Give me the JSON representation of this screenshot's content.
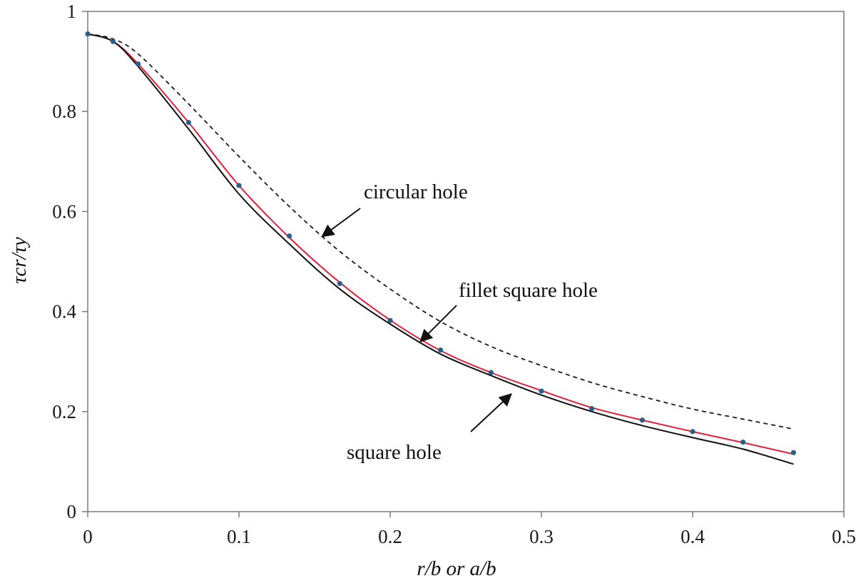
{
  "chart_data": {
    "type": "line",
    "title": "",
    "xlabel": "r/b or a/b",
    "ylabel": "τcr/τy",
    "xlim": [
      0,
      0.5
    ],
    "ylim": [
      0,
      1
    ],
    "x_ticks": [
      "0",
      "0.1",
      "0.2",
      "0.3",
      "0.4",
      "0.5"
    ],
    "y_ticks": [
      "0",
      "0.2",
      "0.4",
      "0.6",
      "0.8",
      "1"
    ],
    "grid": false,
    "legend": "none",
    "series": [
      {
        "name": "circular hole",
        "style": "dashed",
        "color": "#1a1a1a",
        "x": [
          0,
          0.0167,
          0.0333,
          0.0667,
          0.1,
          0.1333,
          0.1667,
          0.2,
          0.2333,
          0.2667,
          0.3,
          0.3333,
          0.3667,
          0.4,
          0.4333,
          0.4667
        ],
        "y": [
          0.955,
          0.945,
          0.915,
          0.815,
          0.71,
          0.61,
          0.52,
          0.445,
          0.38,
          0.33,
          0.292,
          0.258,
          0.23,
          0.205,
          0.185,
          0.165
        ]
      },
      {
        "name": "fillet square hole",
        "style": "solid",
        "color": "#e0203a",
        "x": [
          0,
          0.0167,
          0.0333,
          0.0667,
          0.1,
          0.1333,
          0.1667,
          0.2,
          0.2333,
          0.2667,
          0.3,
          0.3333,
          0.3667,
          0.4,
          0.4333,
          0.4667
        ],
        "y": [
          0.955,
          0.94,
          0.895,
          0.778,
          0.652,
          0.548,
          0.458,
          0.383,
          0.322,
          0.278,
          0.242,
          0.208,
          0.183,
          0.16,
          0.138,
          0.115
        ]
      },
      {
        "name": "square hole",
        "style": "solid",
        "color": "#111111",
        "x": [
          0,
          0.0167,
          0.0333,
          0.0667,
          0.1,
          0.1333,
          0.1667,
          0.2,
          0.2333,
          0.2667,
          0.3,
          0.3333,
          0.3667,
          0.4,
          0.4333,
          0.4667
        ],
        "y": [
          0.955,
          0.94,
          0.89,
          0.765,
          0.635,
          0.535,
          0.445,
          0.375,
          0.315,
          0.272,
          0.233,
          0.2,
          0.172,
          0.148,
          0.125,
          0.095
        ]
      },
      {
        "name": "",
        "style": "markers",
        "color": "#2a5f8a",
        "x": [
          0,
          0.0167,
          0.0333,
          0.0667,
          0.1,
          0.1333,
          0.1667,
          0.2,
          0.2333,
          0.2667,
          0.3,
          0.3333,
          0.3667,
          0.4,
          0.4333,
          0.4667
        ],
        "y": [
          0.955,
          0.94,
          0.895,
          0.778,
          0.652,
          0.551,
          0.456,
          0.382,
          0.323,
          0.278,
          0.241,
          0.206,
          0.183,
          0.16,
          0.139,
          0.118
        ]
      }
    ],
    "annotations": [
      {
        "text": "circular hole",
        "points_to_x": 0.155,
        "points_to_y": 0.55
      },
      {
        "text": "fillet square hole",
        "points_to_x": 0.22,
        "points_to_y": 0.34
      },
      {
        "text": "square hole",
        "points_to_x": 0.28,
        "points_to_y": 0.235
      }
    ]
  }
}
